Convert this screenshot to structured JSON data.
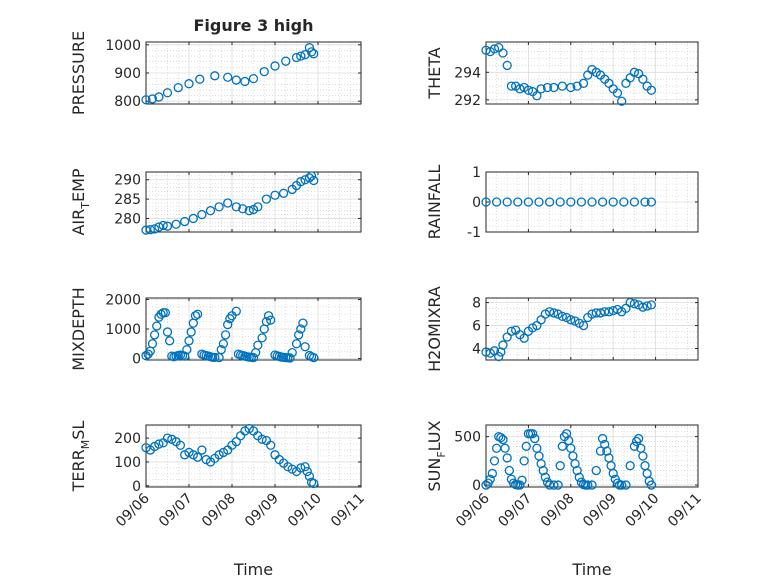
{
  "figure": {
    "title": "Figure 3 high",
    "marker_color": "#0072bd"
  },
  "chart_data": [
    {
      "type": "scatter",
      "panel": "pressure",
      "title": "Figure 3 high",
      "ylabel": "PRESSURE",
      "ylabel_main": "PRESSURE",
      "ylabel_sub": "",
      "ylabel_tail": "",
      "xlabel": "",
      "x_ticks": [
        "09/06",
        "09/07",
        "09/08",
        "09/09",
        "09/10",
        "09/11"
      ],
      "show_x_tick_labels": false,
      "ylim": [
        790,
        1010
      ],
      "y_ticks": [
        800,
        900,
        1000
      ],
      "y_tick_labels": [
        "800",
        "900",
        "1000"
      ],
      "y_minor_step": 20,
      "x_minor_per_day": 4,
      "grid": true,
      "x_day_offset": [
        0,
        3.9
      ],
      "series": [
        {
          "x": [
            0.0,
            0.15,
            0.3,
            0.5,
            0.75,
            1.0,
            1.25,
            1.6,
            1.9,
            2.1,
            2.3,
            2.5,
            2.75,
            3.0,
            3.25,
            3.5,
            3.6,
            3.7,
            3.8,
            3.85,
            3.9
          ],
          "y": [
            805,
            808,
            815,
            830,
            848,
            862,
            878,
            890,
            885,
            875,
            870,
            880,
            905,
            925,
            942,
            955,
            960,
            965,
            990,
            975,
            968
          ]
        }
      ]
    },
    {
      "type": "scatter",
      "panel": "theta",
      "ylabel": "THETA",
      "ylabel_main": "THETA",
      "ylabel_sub": "",
      "ylabel_tail": "",
      "xlabel": "",
      "x_ticks": [
        "09/06",
        "09/07",
        "09/08",
        "09/09",
        "09/10",
        "09/11"
      ],
      "show_x_tick_labels": false,
      "ylim": [
        291.7,
        296.2
      ],
      "y_ticks": [
        292,
        294
      ],
      "y_tick_labels": [
        "292",
        "294"
      ],
      "y_minor_step": 0.5,
      "x_minor_per_day": 4,
      "grid": true,
      "x_day_offset": [
        0,
        3.9
      ],
      "series": [
        {
          "x": [
            0.0,
            0.1,
            0.2,
            0.3,
            0.4,
            0.5,
            0.6,
            0.7,
            0.8,
            0.9,
            1.0,
            1.1,
            1.2,
            1.3,
            1.45,
            1.6,
            1.8,
            2.0,
            2.15,
            2.3,
            2.4,
            2.5,
            2.6,
            2.7,
            2.8,
            2.9,
            3.0,
            3.1,
            3.2,
            3.3,
            3.4,
            3.5,
            3.6,
            3.7,
            3.8,
            3.9
          ],
          "y": [
            295.6,
            295.5,
            295.7,
            295.8,
            295.4,
            294.5,
            293.0,
            293.0,
            292.8,
            292.9,
            292.7,
            292.6,
            292.3,
            292.8,
            292.9,
            292.9,
            293.0,
            292.9,
            293.0,
            293.2,
            293.8,
            294.2,
            294.0,
            293.8,
            293.5,
            293.2,
            292.8,
            292.5,
            291.9,
            293.2,
            293.6,
            294.0,
            293.9,
            293.5,
            293.0,
            292.7
          ]
        }
      ]
    },
    {
      "type": "scatter",
      "panel": "air_temp",
      "ylabel": "AIR_TEMP",
      "ylabel_main": "AIR",
      "ylabel_sub": "T",
      "ylabel_tail": "EMP",
      "xlabel": "",
      "x_ticks": [
        "09/06",
        "09/07",
        "09/08",
        "09/09",
        "09/10",
        "09/11"
      ],
      "show_x_tick_labels": false,
      "ylim": [
        276.5,
        292
      ],
      "y_ticks": [
        280,
        285,
        290
      ],
      "y_tick_labels": [
        "280",
        "285",
        "290"
      ],
      "y_minor_step": 1,
      "x_minor_per_day": 4,
      "grid": true,
      "x_day_offset": [
        0,
        3.9
      ],
      "series": [
        {
          "x": [
            0.0,
            0.1,
            0.2,
            0.3,
            0.4,
            0.5,
            0.7,
            0.9,
            1.1,
            1.3,
            1.5,
            1.7,
            1.9,
            2.1,
            2.25,
            2.4,
            2.5,
            2.6,
            2.8,
            3.0,
            3.2,
            3.4,
            3.5,
            3.6,
            3.7,
            3.8,
            3.85,
            3.9
          ],
          "y": [
            277.0,
            277.1,
            277.3,
            277.8,
            278.2,
            278.0,
            278.5,
            279.2,
            280.0,
            281.0,
            282.0,
            283.0,
            284.0,
            283.0,
            282.5,
            282.0,
            282.3,
            283.0,
            285.0,
            286.0,
            286.5,
            287.5,
            288.5,
            289.5,
            290.0,
            290.5,
            291.0,
            289.8
          ]
        }
      ]
    },
    {
      "type": "scatter",
      "panel": "rainfall",
      "ylabel": "RAINFALL",
      "ylabel_main": "RAINFALL",
      "ylabel_sub": "",
      "ylabel_tail": "",
      "xlabel": "",
      "x_ticks": [
        "09/06",
        "09/07",
        "09/08",
        "09/09",
        "09/10",
        "09/11"
      ],
      "show_x_tick_labels": false,
      "ylim": [
        -1,
        1
      ],
      "y_ticks": [
        -1,
        0,
        1
      ],
      "y_tick_labels": [
        "-1",
        "0",
        "1"
      ],
      "y_minor_step": 0.2,
      "x_minor_per_day": 4,
      "grid": true,
      "x_day_offset": [
        0,
        3.9
      ],
      "series": [
        {
          "x": [
            0.0,
            0.25,
            0.5,
            0.75,
            1.0,
            1.25,
            1.5,
            1.75,
            2.0,
            2.25,
            2.5,
            2.75,
            3.0,
            3.25,
            3.5,
            3.75,
            3.9
          ],
          "y": [
            0,
            0,
            0,
            0,
            0,
            0,
            0,
            0,
            0,
            0,
            0,
            0,
            0,
            0,
            0,
            0,
            0
          ]
        }
      ]
    },
    {
      "type": "scatter",
      "panel": "mixdepth",
      "ylabel": "MIXDEPTH",
      "ylabel_main": "MIXDEPTH",
      "ylabel_sub": "",
      "ylabel_tail": "",
      "xlabel": "",
      "x_ticks": [
        "09/06",
        "09/07",
        "09/08",
        "09/09",
        "09/10",
        "09/11"
      ],
      "show_x_tick_labels": false,
      "ylim": [
        -50,
        2050
      ],
      "y_ticks": [
        0,
        1000,
        2000
      ],
      "y_tick_labels": [
        "0",
        "1000",
        "2000"
      ],
      "y_minor_step": 250,
      "x_minor_per_day": 4,
      "grid": true,
      "x_day_offset": [
        0,
        3.9
      ],
      "series": [
        {
          "x": [
            0.0,
            0.05,
            0.1,
            0.15,
            0.2,
            0.25,
            0.3,
            0.35,
            0.4,
            0.45,
            0.5,
            0.55,
            0.6,
            0.65,
            0.7,
            0.75,
            0.8,
            0.85,
            0.9,
            0.95,
            1.0,
            1.05,
            1.1,
            1.15,
            1.2,
            1.3,
            1.35,
            1.4,
            1.45,
            1.5,
            1.55,
            1.6,
            1.7,
            1.75,
            1.8,
            1.85,
            1.9,
            1.95,
            2.0,
            2.1,
            2.15,
            2.2,
            2.25,
            2.3,
            2.35,
            2.4,
            2.45,
            2.5,
            2.55,
            2.6,
            2.7,
            2.75,
            2.8,
            2.85,
            2.9,
            3.0,
            3.05,
            3.1,
            3.15,
            3.2,
            3.25,
            3.3,
            3.35,
            3.4,
            3.5,
            3.55,
            3.6,
            3.65,
            3.7,
            3.8,
            3.85,
            3.9
          ],
          "y": [
            100,
            150,
            250,
            500,
            800,
            1100,
            1400,
            1500,
            1550,
            1550,
            900,
            600,
            80,
            60,
            80,
            100,
            120,
            100,
            80,
            300,
            600,
            900,
            1200,
            1450,
            1500,
            150,
            120,
            100,
            80,
            60,
            40,
            40,
            30,
            300,
            500,
            800,
            1150,
            1350,
            1450,
            1600,
            150,
            120,
            100,
            80,
            60,
            50,
            40,
            30,
            200,
            450,
            700,
            1000,
            1250,
            1450,
            1300,
            120,
            90,
            70,
            50,
            40,
            30,
            25,
            20,
            200,
            500,
            800,
            1000,
            1200,
            400,
            100,
            60,
            30
          ]
        }
      ]
    },
    {
      "type": "scatter",
      "panel": "h2omixra",
      "ylabel": "H2OMIXRA",
      "ylabel_main": "H2OMIXRA",
      "ylabel_sub": "",
      "ylabel_tail": "",
      "xlabel": "",
      "x_ticks": [
        "09/06",
        "09/07",
        "09/08",
        "09/09",
        "09/10",
        "09/11"
      ],
      "show_x_tick_labels": false,
      "ylim": [
        3.0,
        8.4
      ],
      "y_ticks": [
        4,
        6,
        8
      ],
      "y_tick_labels": [
        "4",
        "6",
        "8"
      ],
      "y_minor_step": 0.5,
      "x_minor_per_day": 4,
      "grid": true,
      "x_day_offset": [
        0,
        3.9
      ],
      "series": [
        {
          "x": [
            0.0,
            0.1,
            0.2,
            0.3,
            0.35,
            0.4,
            0.5,
            0.6,
            0.7,
            0.8,
            0.9,
            1.0,
            1.1,
            1.2,
            1.3,
            1.4,
            1.5,
            1.6,
            1.7,
            1.8,
            1.9,
            2.0,
            2.1,
            2.2,
            2.3,
            2.4,
            2.5,
            2.6,
            2.7,
            2.8,
            2.9,
            3.0,
            3.1,
            3.2,
            3.3,
            3.4,
            3.5,
            3.6,
            3.7,
            3.8,
            3.9
          ],
          "y": [
            3.7,
            3.6,
            3.8,
            3.3,
            3.7,
            4.3,
            5.0,
            5.5,
            5.6,
            5.2,
            4.9,
            5.5,
            5.8,
            6.0,
            6.5,
            7.0,
            7.2,
            7.1,
            7.0,
            6.8,
            6.7,
            6.5,
            6.4,
            6.2,
            6.0,
            6.7,
            7.0,
            7.1,
            7.1,
            7.2,
            7.2,
            7.3,
            7.4,
            7.2,
            7.5,
            8.0,
            7.9,
            7.8,
            7.6,
            7.7,
            7.8
          ]
        }
      ]
    },
    {
      "type": "scatter",
      "panel": "terr_msl",
      "ylabel": "TERR_MSL",
      "ylabel_main": "TERR",
      "ylabel_sub": "M",
      "ylabel_tail": "SL",
      "xlabel": "Time",
      "x_ticks": [
        "09/06",
        "09/07",
        "09/08",
        "09/09",
        "09/10",
        "09/11"
      ],
      "show_x_tick_labels": true,
      "ylim": [
        -5,
        255
      ],
      "y_ticks": [
        0,
        100,
        200
      ],
      "y_tick_labels": [
        "0",
        "100",
        "200"
      ],
      "y_minor_step": 25,
      "x_minor_per_day": 4,
      "grid": true,
      "x_day_offset": [
        0,
        3.9
      ],
      "series": [
        {
          "x": [
            0.0,
            0.1,
            0.2,
            0.3,
            0.4,
            0.5,
            0.6,
            0.7,
            0.8,
            0.9,
            1.0,
            1.1,
            1.2,
            1.3,
            1.4,
            1.5,
            1.6,
            1.7,
            1.8,
            1.9,
            2.0,
            2.1,
            2.2,
            2.3,
            2.4,
            2.5,
            2.6,
            2.7,
            2.8,
            2.9,
            3.0,
            3.1,
            3.2,
            3.3,
            3.4,
            3.5,
            3.6,
            3.7,
            3.75,
            3.8,
            3.85,
            3.9
          ],
          "y": [
            160,
            150,
            165,
            175,
            180,
            200,
            195,
            185,
            170,
            130,
            140,
            130,
            120,
            150,
            110,
            100,
            115,
            130,
            140,
            150,
            170,
            185,
            210,
            230,
            240,
            230,
            210,
            195,
            190,
            170,
            130,
            110,
            95,
            80,
            70,
            60,
            75,
            80,
            60,
            40,
            15,
            10
          ]
        }
      ]
    },
    {
      "type": "scatter",
      "panel": "sun_flux",
      "ylabel": "SUN_FLUX",
      "ylabel_main": "SUN",
      "ylabel_sub": "F",
      "ylabel_tail": "LUX",
      "xlabel": "Time",
      "x_ticks": [
        "09/06",
        "09/07",
        "09/08",
        "09/09",
        "09/10",
        "09/11"
      ],
      "show_x_tick_labels": true,
      "ylim": [
        -20,
        620
      ],
      "y_ticks": [
        0,
        500
      ],
      "y_tick_labels": [
        "0",
        "500"
      ],
      "y_minor_step": 50,
      "x_minor_per_day": 4,
      "grid": true,
      "x_day_offset": [
        0,
        3.9
      ],
      "series": [
        {
          "x": [
            0.0,
            0.05,
            0.1,
            0.15,
            0.2,
            0.25,
            0.3,
            0.35,
            0.4,
            0.45,
            0.5,
            0.55,
            0.6,
            0.65,
            0.7,
            0.75,
            0.8,
            0.85,
            0.9,
            0.95,
            1.0,
            1.05,
            1.1,
            1.15,
            1.2,
            1.25,
            1.3,
            1.35,
            1.4,
            1.45,
            1.5,
            1.6,
            1.7,
            1.75,
            1.8,
            1.85,
            1.9,
            1.95,
            2.0,
            2.05,
            2.1,
            2.15,
            2.2,
            2.25,
            2.3,
            2.35,
            2.4,
            2.5,
            2.6,
            2.7,
            2.75,
            2.8,
            2.85,
            2.9,
            2.95,
            3.0,
            3.05,
            3.1,
            3.15,
            3.2,
            3.3,
            3.4,
            3.5,
            3.55,
            3.6,
            3.65,
            3.7,
            3.75,
            3.8,
            3.85,
            3.9
          ],
          "y": [
            0,
            20,
            60,
            120,
            250,
            380,
            500,
            490,
            470,
            380,
            280,
            150,
            60,
            20,
            5,
            0,
            0,
            50,
            250,
            400,
            530,
            530,
            530,
            480,
            380,
            300,
            220,
            150,
            80,
            30,
            0,
            0,
            0,
            200,
            400,
            500,
            530,
            460,
            380,
            300,
            220,
            150,
            80,
            30,
            5,
            0,
            0,
            0,
            150,
            350,
            480,
            420,
            350,
            280,
            200,
            120,
            60,
            20,
            0,
            0,
            0,
            200,
            400,
            450,
            480,
            380,
            300,
            200,
            120,
            40,
            0
          ]
        }
      ]
    }
  ]
}
